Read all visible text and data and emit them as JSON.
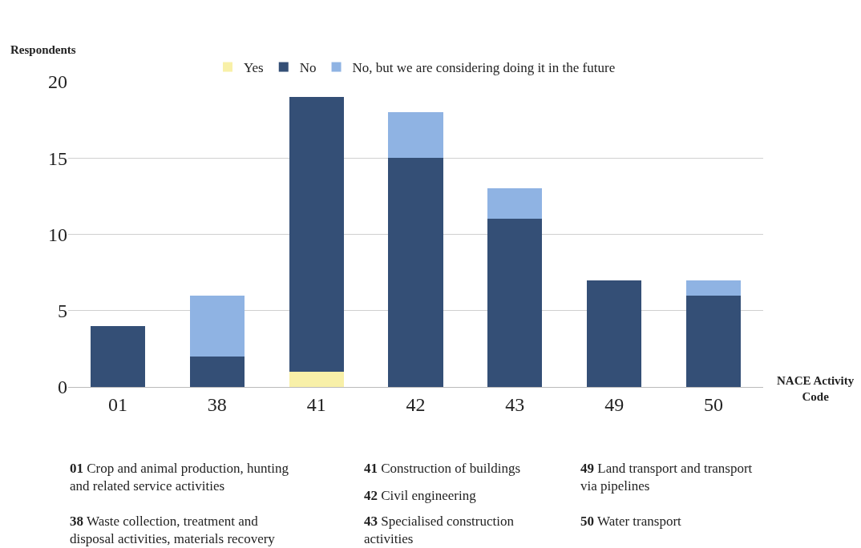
{
  "chart_data": {
    "type": "bar",
    "stacked": true,
    "ylabel": "Respondents",
    "xlabel": "NACE Activity Code",
    "categories": [
      "01",
      "38",
      "41",
      "42",
      "43",
      "49",
      "50"
    ],
    "series": [
      {
        "name": "Yes",
        "color": "#f8f0a8",
        "values": [
          0,
          0,
          1,
          0,
          0,
          0,
          0
        ]
      },
      {
        "name": "No",
        "color": "#344f76",
        "values": [
          4,
          2,
          18,
          15,
          11,
          7,
          6
        ]
      },
      {
        "name": "No, but we are considering doing it in the future",
        "color": "#8fb3e3",
        "values": [
          0,
          4,
          0,
          3,
          2,
          0,
          1
        ]
      }
    ],
    "ylim": [
      0,
      20
    ],
    "yticks": [
      0,
      5,
      10,
      15,
      20
    ],
    "grid": "y",
    "legend": "top",
    "annotations": [
      "01 Crop and animal production, hunting and related service activities",
      "38 Waste collection, treatment and disposal activities, materials recovery",
      "41 Construction of buildings",
      "42 Civil engineering",
      "43 Specialised construction activities",
      "49 Land transport and transport via pipelines",
      "50 Water transport"
    ]
  }
}
